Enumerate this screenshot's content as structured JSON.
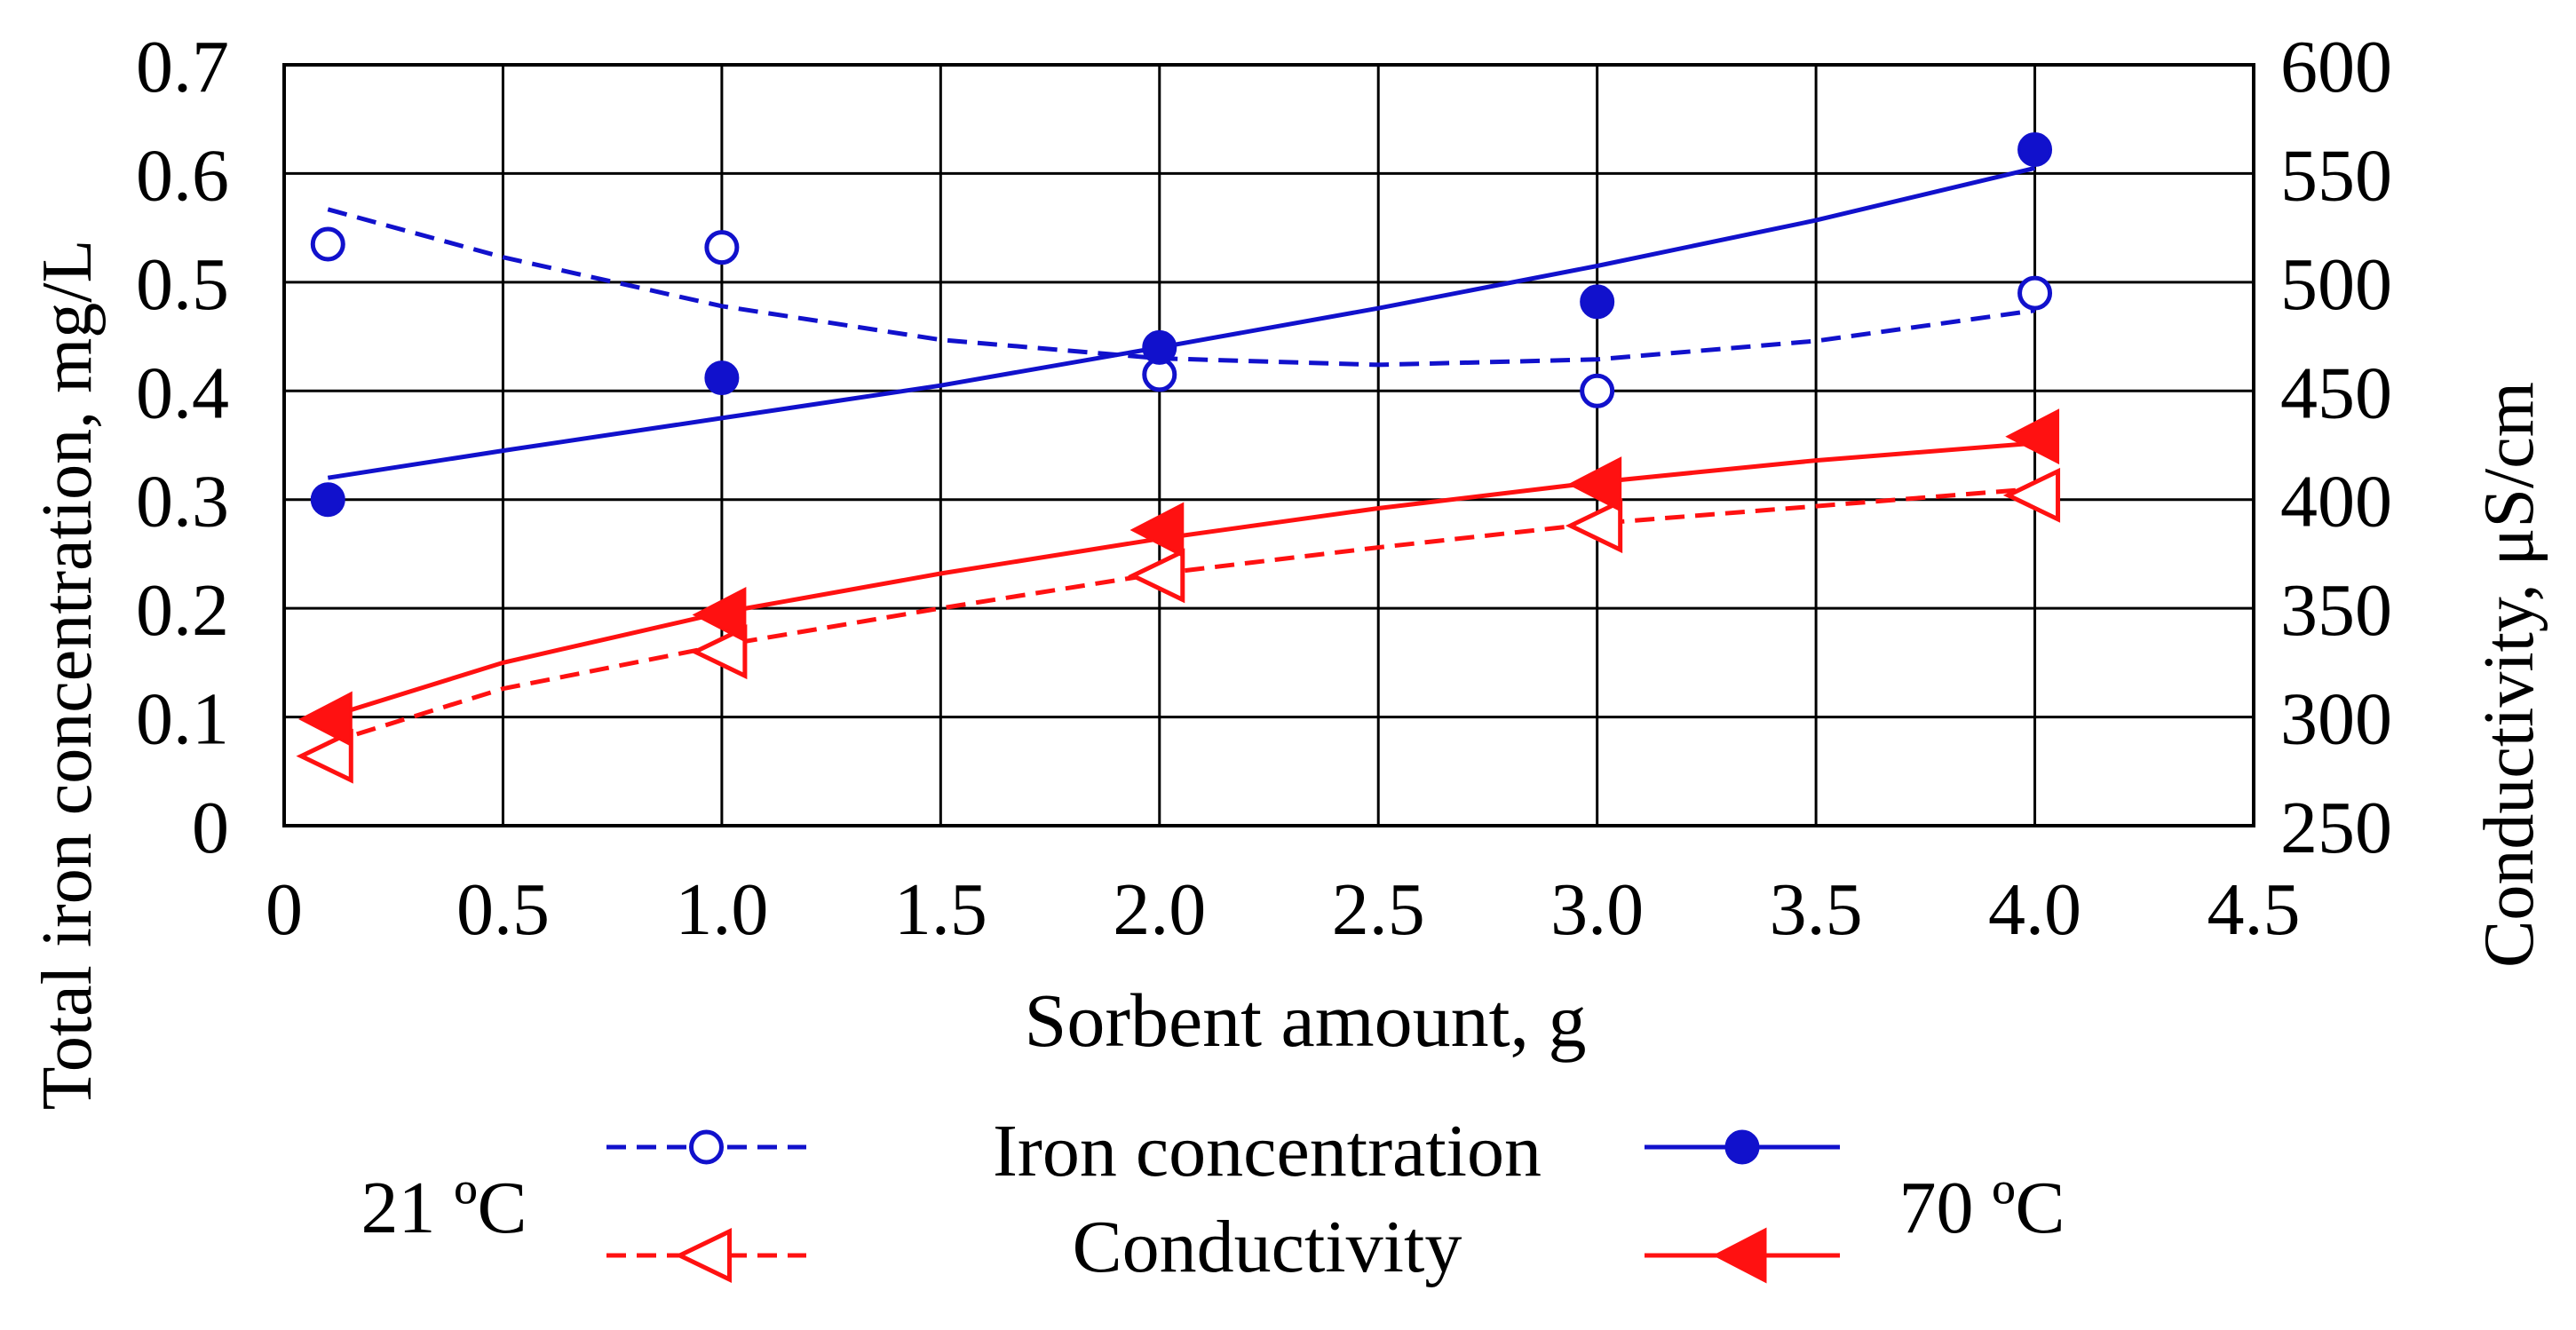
{
  "chart_data": {
    "type": "scatter",
    "xlabel": "Sorbent amount, g",
    "ylabel": "Total iron concentration, mg/L",
    "y2label": "Conductivity, μS/cm",
    "xlim": [
      0,
      4.5
    ],
    "ylim": [
      0,
      0.7
    ],
    "y2lim": [
      250,
      600
    ],
    "grid": true,
    "x_ticks": [
      "0",
      "0.5",
      "1.0",
      "1.5",
      "2.0",
      "2.5",
      "3.0",
      "3.5",
      "4.0",
      "4.5"
    ],
    "y_ticks": [
      "0",
      "0.1",
      "0.2",
      "0.3",
      "0.4",
      "0.5",
      "0.6",
      "0.7"
    ],
    "y2_ticks": [
      "250",
      "300",
      "350",
      "400",
      "450",
      "500",
      "550",
      "600"
    ],
    "series": [
      {
        "name": "Iron concentration",
        "temperature": "21 °C",
        "axis": "left",
        "marker": "open-circle",
        "line": "dashed",
        "color": "#1111cc",
        "x": [
          0.1,
          1.0,
          2.0,
          3.0,
          4.0
        ],
        "y": [
          0.535,
          0.532,
          0.415,
          0.4,
          0.49
        ],
        "fit_x": [
          0.1,
          0.5,
          1.0,
          1.5,
          2.0,
          2.5,
          3.0,
          3.5,
          4.0
        ],
        "fit_y": [
          0.567,
          0.523,
          0.478,
          0.447,
          0.43,
          0.424,
          0.429,
          0.446,
          0.474
        ]
      },
      {
        "name": "Iron concentration",
        "temperature": "70 °C",
        "axis": "left",
        "marker": "filled-circle",
        "line": "solid",
        "color": "#1111cc",
        "x": [
          0.1,
          1.0,
          2.0,
          3.0,
          4.0
        ],
        "y": [
          0.3,
          0.412,
          0.44,
          0.482,
          0.622
        ],
        "fit_x": [
          0.1,
          0.5,
          1.0,
          1.5,
          2.0,
          2.5,
          3.0,
          3.5,
          4.0
        ],
        "fit_y": [
          0.32,
          0.345,
          0.375,
          0.405,
          0.44,
          0.476,
          0.515,
          0.557,
          0.605
        ]
      },
      {
        "name": "Conductivity",
        "temperature": "21 °C",
        "axis": "right",
        "marker": "open-triangle-left",
        "line": "dashed",
        "color": "#ff1111",
        "x": [
          0.1,
          1.0,
          2.0,
          3.0,
          4.0
        ],
        "y": [
          282,
          330,
          365,
          388,
          402
        ],
        "fit_x": [
          0.1,
          0.5,
          1.0,
          1.5,
          2.0,
          2.5,
          3.0,
          3.5,
          4.0
        ],
        "fit_y": [
          288,
          313,
          333,
          350,
          366,
          378,
          389,
          397,
          405
        ]
      },
      {
        "name": "Conductivity",
        "temperature": "70 °C",
        "axis": "right",
        "marker": "filled-triangle-left",
        "line": "solid",
        "color": "#ff1111",
        "x": [
          0.1,
          1.0,
          2.0,
          3.0,
          4.0
        ],
        "y": [
          299,
          347,
          386,
          407,
          429
        ],
        "fit_x": [
          0.1,
          0.5,
          1.0,
          1.5,
          2.0,
          2.5,
          3.0,
          3.5,
          4.0
        ],
        "fit_y": [
          300,
          325,
          348,
          366,
          382,
          396,
          408,
          418,
          426
        ]
      }
    ]
  },
  "legend": {
    "left_temp": "21 ºC",
    "right_temp": "70 ºC",
    "row1_label": "Iron concentration",
    "row2_label": "Conductivity"
  }
}
